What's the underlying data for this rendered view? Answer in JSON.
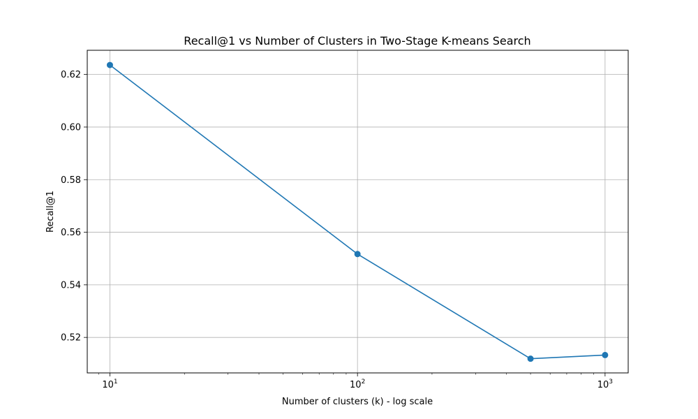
{
  "chart_data": {
    "type": "line",
    "title": "Recall@1 vs Number of Clusters in Two-Stage K-means Search",
    "xlabel": "Number of clusters (k) - log scale",
    "ylabel": "Recall@1",
    "xscale": "log",
    "xlim": [
      8.1,
      1240
    ],
    "ylim": [
      0.5065,
      0.6292
    ],
    "grid": true,
    "x_major_ticks": [
      {
        "value": 10,
        "base": "10",
        "exp": "1"
      },
      {
        "value": 100,
        "base": "10",
        "exp": "2"
      },
      {
        "value": 1000,
        "base": "10",
        "exp": "3"
      }
    ],
    "y_ticks": [
      0.52,
      0.54,
      0.56,
      0.58,
      0.6,
      0.62
    ],
    "y_tick_labels": [
      "0.52",
      "0.54",
      "0.56",
      "0.58",
      "0.60",
      "0.62"
    ],
    "series": [
      {
        "color": "#1f77b4",
        "marker": "circle",
        "x": [
          10,
          100,
          500,
          1000
        ],
        "y": [
          0.6236,
          0.5517,
          0.5119,
          0.5133
        ]
      }
    ]
  }
}
